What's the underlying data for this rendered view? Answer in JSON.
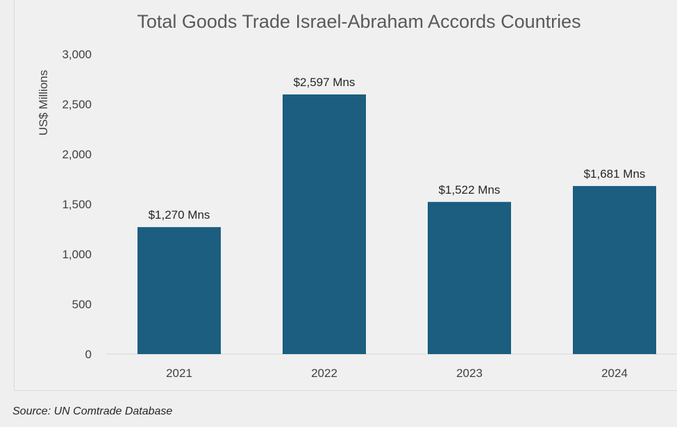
{
  "chart_data": {
    "type": "bar",
    "title": "Total Goods Trade Israel-Abraham Accords Countries",
    "xlabel": "",
    "ylabel": "US$ Millions",
    "categories": [
      "2021",
      "2022",
      "2023",
      "2024"
    ],
    "values": [
      1270,
      2597,
      1522,
      1681
    ],
    "data_labels": [
      "$1,270 Mns",
      "$2,597 Mns",
      "$1,522 Mns",
      "$1,681 Mns"
    ],
    "ylim": [
      0,
      3000
    ],
    "yticks": [
      0,
      500,
      1000,
      1500,
      2000,
      2500,
      3000
    ],
    "ytick_labels": [
      "0",
      "500",
      "1,000",
      "1,500",
      "2,000",
      "2,500",
      "3,000"
    ],
    "grid": false,
    "legend": "none",
    "bar_color": "#1b5e80"
  },
  "source": "Source: UN Comtrade Database"
}
